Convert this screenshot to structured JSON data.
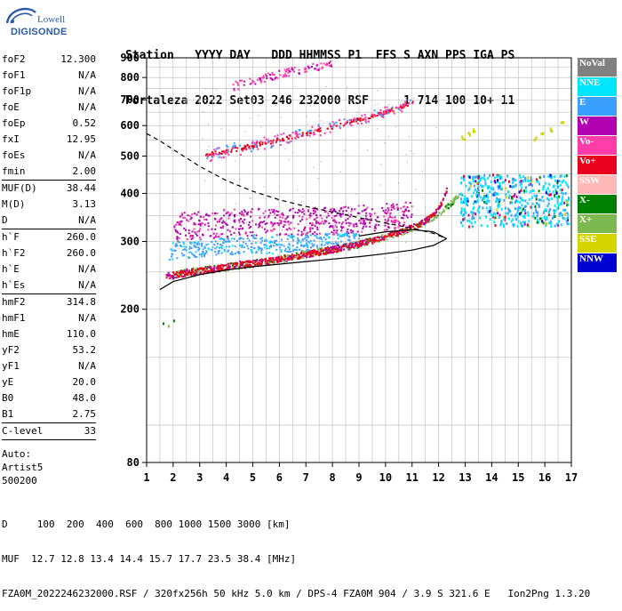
{
  "logo": {
    "line1": "Lowell",
    "line2": "DIGISONDE"
  },
  "header": {
    "line1": "Station   YYYY DAY   DDD HHMMSS P1  FFS S AXN PPS IGA PS",
    "line2": "Fortaleza 2022 Set03 246 232000 RSF     1 714 100 10+ 11"
  },
  "params": {
    "g1": [
      {
        "name": "foF2",
        "value": "12.300"
      },
      {
        "name": "foF1",
        "value": "N/A"
      },
      {
        "name": "foF1p",
        "value": "N/A"
      },
      {
        "name": "foE",
        "value": "N/A"
      },
      {
        "name": "foEp",
        "value": "0.52"
      },
      {
        "name": "fxI",
        "value": "12.95"
      },
      {
        "name": "foEs",
        "value": "N/A"
      },
      {
        "name": "fmin",
        "value": "2.00"
      }
    ],
    "g2": [
      {
        "name": "MUF(D)",
        "value": "38.44"
      },
      {
        "name": "M(D)",
        "value": "3.13"
      },
      {
        "name": "D",
        "value": "N/A"
      }
    ],
    "g3": [
      {
        "name": "h`F",
        "value": "260.0"
      },
      {
        "name": "h`F2",
        "value": "260.0"
      },
      {
        "name": "h`E",
        "value": "N/A"
      },
      {
        "name": "h`Es",
        "value": "N/A"
      }
    ],
    "g4": [
      {
        "name": "hmF2",
        "value": "314.8"
      },
      {
        "name": "hmF1",
        "value": "N/A"
      },
      {
        "name": "hmE",
        "value": "110.0"
      },
      {
        "name": "yF2",
        "value": "53.2"
      },
      {
        "name": "yF1",
        "value": "N/A"
      },
      {
        "name": "yE",
        "value": "20.0"
      },
      {
        "name": "B0",
        "value": "48.0"
      },
      {
        "name": "B1",
        "value": "2.75"
      }
    ],
    "g5": [
      {
        "name": "C-level",
        "value": "33"
      }
    ],
    "auto": [
      "Auto:",
      "Artist5",
      "500200"
    ]
  },
  "legend": [
    {
      "label": "NoVal",
      "color": "#808080"
    },
    {
      "label": "NNE",
      "color": "#00e6ff"
    },
    {
      "label": "E",
      "color": "#3aa0ff"
    },
    {
      "label": "W",
      "color": "#b000b0"
    },
    {
      "label": "Vo-",
      "color": "#ff3ca8"
    },
    {
      "label": "Vo+",
      "color": "#e8001c"
    },
    {
      "label": "SSW",
      "color": "#ffb8b8"
    },
    {
      "label": "X-",
      "color": "#008000"
    },
    {
      "label": "X+",
      "color": "#7db850"
    },
    {
      "label": "SSE",
      "color": "#d4d400"
    },
    {
      "label": "NNW",
      "color": "#0000d0"
    }
  ],
  "chart_data": {
    "type": "scatter",
    "xlim": [
      1,
      17
    ],
    "ylim": [
      80,
      900
    ],
    "xticks": [
      "1",
      "2",
      "3",
      "4",
      "5",
      "6",
      "7",
      "8",
      "9",
      "10",
      "11",
      "12",
      "13",
      "14",
      "15",
      "16",
      "17"
    ],
    "yticks": [
      "80",
      "200",
      "300",
      "400",
      "500",
      "600",
      "700",
      "800",
      "900"
    ],
    "y_scale": "log",
    "grid": true,
    "trace_o_mode": [
      [
        1.7,
        245
      ],
      [
        2.5,
        250
      ],
      [
        3.5,
        255
      ],
      [
        4.5,
        262
      ],
      [
        5.5,
        268
      ],
      [
        6.5,
        275
      ],
      [
        7.5,
        283
      ],
      [
        8.5,
        292
      ],
      [
        9.5,
        303
      ],
      [
        10.5,
        318
      ],
      [
        11.3,
        335
      ],
      [
        11.8,
        355
      ],
      [
        12.1,
        380
      ],
      [
        12.3,
        415
      ]
    ],
    "trace_x_mode": [
      [
        2.0,
        248
      ],
      [
        3.0,
        253
      ],
      [
        4.0,
        258
      ],
      [
        5.0,
        264
      ],
      [
        6.0,
        271
      ],
      [
        7.0,
        279
      ],
      [
        8.0,
        287
      ],
      [
        9.0,
        297
      ],
      [
        10.0,
        310
      ],
      [
        11.0,
        326
      ],
      [
        11.8,
        348
      ],
      [
        12.4,
        375
      ],
      [
        12.8,
        405
      ]
    ],
    "trace_second_hop": [
      [
        3.2,
        505
      ],
      [
        4.0,
        518
      ],
      [
        5.0,
        535
      ],
      [
        6.0,
        555
      ],
      [
        7.0,
        575
      ],
      [
        8.0,
        600
      ],
      [
        9.0,
        625
      ],
      [
        10.0,
        655
      ],
      [
        11.0,
        690
      ]
    ],
    "trace_upper_W": [
      [
        4.2,
        760
      ],
      [
        5.0,
        790
      ],
      [
        6.0,
        820
      ],
      [
        7.0,
        850
      ],
      [
        8.0,
        870
      ]
    ],
    "spread_band": [
      [
        2.0,
        330
      ],
      [
        3.5,
        335
      ],
      [
        5.0,
        340
      ],
      [
        6.5,
        340
      ],
      [
        8.0,
        342
      ],
      [
        9.5,
        348
      ],
      [
        11.0,
        355
      ]
    ],
    "blue_band": [
      [
        1.8,
        285
      ],
      [
        3.0,
        290
      ],
      [
        4.5,
        295
      ],
      [
        6.0,
        298
      ],
      [
        7.5,
        300
      ],
      [
        9.0,
        305
      ]
    ],
    "high_freq_cluster": {
      "x": [
        12.8,
        16.9
      ],
      "y": [
        330,
        450
      ]
    },
    "yellow_points": [
      [
        12.9,
        560
      ],
      [
        13.1,
        575
      ],
      [
        13.3,
        585
      ],
      [
        15.6,
        560
      ],
      [
        15.9,
        575
      ],
      [
        16.2,
        590
      ],
      [
        16.6,
        612
      ]
    ],
    "profile_dashed": [
      [
        1.0,
        572
      ],
      [
        1.5,
        548
      ],
      [
        2.0,
        520
      ],
      [
        3.0,
        470
      ],
      [
        4.0,
        432
      ],
      [
        5.0,
        405
      ],
      [
        6.0,
        385
      ],
      [
        7.0,
        370
      ],
      [
        8.0,
        358
      ],
      [
        9.0,
        346
      ],
      [
        10.0,
        335
      ],
      [
        11.0,
        325
      ],
      [
        11.8,
        315
      ],
      [
        12.3,
        305
      ]
    ],
    "profile_solid_upper": [
      [
        12.3,
        305
      ],
      [
        11.8,
        293
      ],
      [
        11.0,
        285
      ],
      [
        10.0,
        279
      ],
      [
        9.0,
        274
      ],
      [
        8.0,
        270
      ],
      [
        7.0,
        266
      ],
      [
        6.0,
        262
      ],
      [
        5.0,
        258
      ],
      [
        4.0,
        253
      ],
      [
        3.0,
        246
      ],
      [
        2.0,
        236
      ],
      [
        1.5,
        225
      ]
    ],
    "profile_solid_lower": [
      [
        12.3,
        305
      ],
      [
        11.8,
        318
      ],
      [
        11.0,
        322
      ],
      [
        10.0,
        318
      ],
      [
        9.0,
        310
      ]
    ]
  },
  "footer": {
    "line1": "D     100  200  400  600  800 1000 1500 3000 [km]",
    "line2": "MUF  12.7 12.8 13.4 14.4 15.7 17.7 23.5 38.4 [MHz]",
    "line3": "FZA0M_2022246232000.RSF / 320fx256h 50 kHz 5.0 km / DPS-4 FZA0M 904 / 3.9 S 321.6 E   Ion2Png 1.3.20"
  }
}
